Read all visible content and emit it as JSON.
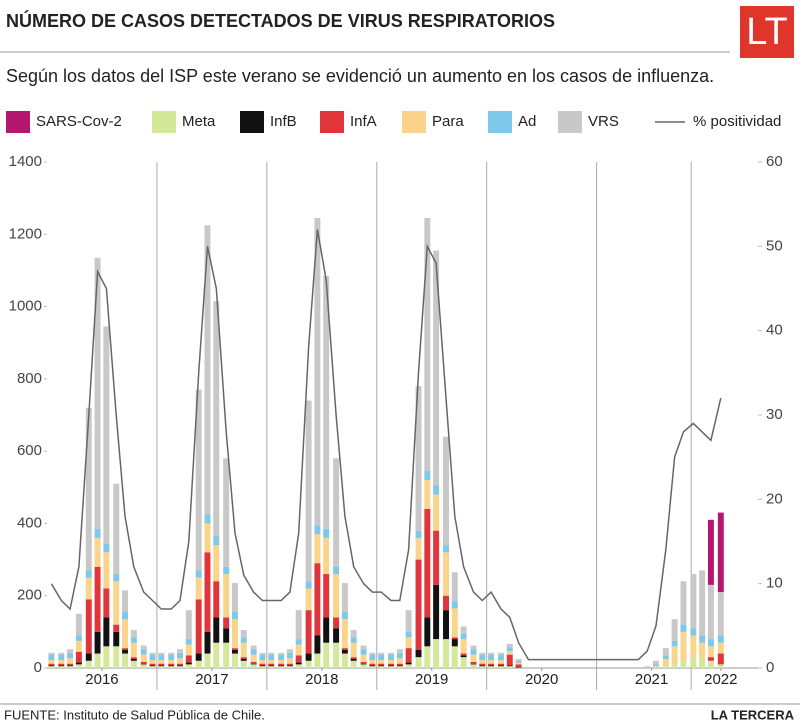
{
  "chart_data": {
    "type": "bar",
    "title": "NÚMERO DE CASOS DETECTADOS DE VIRUS RESPIRATORIOS",
    "subtitle": "Según los datos del ISP este verano se evidenció un aumento en los casos de influenza.",
    "logo": "LT",
    "source": "FUENTE: Instituto de Salud Pública de Chile.",
    "publisher": "LA TERCERA",
    "x": [
      2016.04,
      2016.13,
      2016.21,
      2016.29,
      2016.38,
      2016.46,
      2016.54,
      2016.63,
      2016.71,
      2016.79,
      2016.88,
      2016.96,
      2017.04,
      2017.13,
      2017.21,
      2017.29,
      2017.38,
      2017.46,
      2017.54,
      2017.63,
      2017.71,
      2017.79,
      2017.88,
      2017.96,
      2018.04,
      2018.13,
      2018.21,
      2018.29,
      2018.38,
      2018.46,
      2018.54,
      2018.63,
      2018.71,
      2018.79,
      2018.88,
      2018.96,
      2019.04,
      2019.13,
      2019.21,
      2019.29,
      2019.38,
      2019.46,
      2019.54,
      2019.63,
      2019.71,
      2019.79,
      2019.88,
      2019.96,
      2020.04,
      2020.13,
      2020.21,
      2020.29,
      2020.38,
      2020.46,
      2020.54,
      2020.63,
      2020.71,
      2020.79,
      2020.88,
      2020.96,
      2021.04,
      2021.13,
      2021.21,
      2021.29,
      2021.38,
      2021.46,
      2021.54,
      2021.63,
      2021.71,
      2021.79,
      2021.88,
      2021.96,
      2022.04,
      2022.13
    ],
    "xlim": [
      2016,
      2022.25
    ],
    "xticks": [
      {
        "value": 2016.5,
        "label": "2016"
      },
      {
        "value": 2017.5,
        "label": "2017"
      },
      {
        "value": 2018.5,
        "label": "2018"
      },
      {
        "value": 2019.5,
        "label": "2019"
      },
      {
        "value": 2020.5,
        "label": "2020"
      },
      {
        "value": 2021.5,
        "label": "2021"
      },
      {
        "value": 2022.13,
        "label": "2022"
      }
    ],
    "ylim": [
      0,
      1400
    ],
    "yticks": [
      0,
      200,
      400,
      600,
      800,
      1000,
      1200,
      1400
    ],
    "y2lim": [
      0,
      60
    ],
    "y2ticks": [
      0,
      10,
      20,
      30,
      40,
      50,
      60
    ],
    "series": [
      {
        "name": "SARS-Cov-2",
        "color": "#b5176f",
        "values": [
          0,
          0,
          0,
          0,
          0,
          0,
          0,
          0,
          0,
          0,
          0,
          0,
          0,
          0,
          0,
          0,
          0,
          0,
          0,
          0,
          0,
          0,
          0,
          0,
          0,
          0,
          0,
          0,
          0,
          0,
          0,
          0,
          0,
          0,
          0,
          0,
          0,
          0,
          0,
          0,
          0,
          0,
          0,
          0,
          0,
          0,
          0,
          0,
          0,
          0,
          0,
          0,
          0,
          0,
          0,
          0,
          0,
          0,
          0,
          0,
          0,
          0,
          0,
          0,
          0,
          0,
          0,
          0,
          0,
          0,
          0,
          0,
          180,
          220
        ]
      },
      {
        "name": "Meta",
        "color": "#d4e89a",
        "values": [
          5,
          5,
          5,
          10,
          20,
          40,
          60,
          60,
          40,
          20,
          10,
          5,
          5,
          5,
          5,
          10,
          20,
          40,
          70,
          70,
          40,
          20,
          10,
          5,
          5,
          5,
          5,
          10,
          20,
          40,
          70,
          70,
          40,
          20,
          10,
          5,
          5,
          5,
          5,
          10,
          30,
          60,
          80,
          80,
          60,
          30,
          10,
          5,
          5,
          5,
          5,
          0,
          0,
          0,
          0,
          0,
          0,
          0,
          0,
          0,
          0,
          0,
          0,
          0,
          0,
          0,
          0,
          5,
          10,
          20,
          30,
          30,
          20,
          10
        ]
      },
      {
        "name": "InfB",
        "color": "#111111",
        "values": [
          2,
          2,
          2,
          5,
          20,
          60,
          80,
          40,
          10,
          5,
          2,
          2,
          2,
          2,
          2,
          5,
          20,
          60,
          70,
          40,
          10,
          5,
          2,
          2,
          2,
          2,
          2,
          5,
          20,
          50,
          70,
          40,
          10,
          5,
          2,
          2,
          2,
          2,
          2,
          5,
          20,
          80,
          150,
          80,
          20,
          5,
          2,
          2,
          2,
          2,
          2,
          0,
          0,
          0,
          0,
          0,
          0,
          0,
          0,
          0,
          0,
          0,
          0,
          0,
          0,
          0,
          0,
          0,
          0,
          0,
          0,
          0,
          0,
          0
        ]
      },
      {
        "name": "InfA",
        "color": "#e0353b",
        "values": [
          5,
          5,
          5,
          30,
          150,
          180,
          80,
          20,
          5,
          5,
          5,
          5,
          5,
          5,
          5,
          20,
          150,
          220,
          100,
          30,
          5,
          5,
          5,
          5,
          5,
          5,
          5,
          20,
          120,
          200,
          120,
          30,
          5,
          5,
          5,
          5,
          5,
          5,
          5,
          40,
          250,
          300,
          150,
          40,
          5,
          5,
          5,
          5,
          5,
          5,
          30,
          10,
          0,
          0,
          0,
          0,
          0,
          0,
          0,
          0,
          0,
          0,
          0,
          0,
          0,
          0,
          0,
          0,
          0,
          0,
          0,
          0,
          10,
          30
        ]
      },
      {
        "name": "Para",
        "color": "#f9d48a",
        "values": [
          10,
          10,
          15,
          30,
          60,
          80,
          100,
          120,
          80,
          40,
          20,
          10,
          10,
          10,
          15,
          30,
          60,
          80,
          100,
          120,
          80,
          40,
          20,
          10,
          10,
          10,
          15,
          30,
          60,
          80,
          100,
          120,
          80,
          40,
          20,
          10,
          10,
          10,
          15,
          30,
          60,
          80,
          100,
          120,
          80,
          40,
          20,
          10,
          10,
          10,
          10,
          5,
          0,
          0,
          0,
          0,
          0,
          0,
          0,
          0,
          0,
          0,
          0,
          0,
          0,
          0,
          5,
          20,
          50,
          80,
          60,
          40,
          30,
          30
        ]
      },
      {
        "name": "Ad",
        "color": "#7ec8ea",
        "values": [
          15,
          15,
          15,
          15,
          20,
          25,
          25,
          20,
          20,
          15,
          15,
          15,
          15,
          15,
          15,
          15,
          20,
          25,
          25,
          20,
          20,
          15,
          15,
          15,
          15,
          15,
          15,
          15,
          20,
          25,
          25,
          20,
          20,
          15,
          15,
          15,
          15,
          15,
          15,
          15,
          20,
          25,
          25,
          20,
          20,
          15,
          15,
          15,
          15,
          15,
          10,
          5,
          0,
          0,
          0,
          0,
          0,
          0,
          0,
          0,
          0,
          0,
          0,
          0,
          0,
          0,
          5,
          10,
          15,
          20,
          20,
          20,
          20,
          20
        ]
      },
      {
        "name": "VRS",
        "color": "#c8c8c8",
        "values": [
          5,
          5,
          10,
          60,
          450,
          750,
          600,
          250,
          60,
          20,
          10,
          5,
          5,
          5,
          10,
          80,
          500,
          800,
          650,
          300,
          80,
          20,
          10,
          5,
          5,
          5,
          10,
          80,
          500,
          850,
          700,
          300,
          80,
          20,
          10,
          5,
          5,
          5,
          10,
          60,
          400,
          700,
          650,
          300,
          80,
          20,
          10,
          5,
          5,
          5,
          10,
          5,
          0,
          0,
          0,
          0,
          0,
          0,
          0,
          0,
          0,
          0,
          0,
          0,
          0,
          5,
          10,
          20,
          60,
          120,
          150,
          180,
          150,
          120
        ]
      },
      {
        "name": "% positividad",
        "color": "#666666",
        "type": "line",
        "axis": "y2",
        "values": [
          10,
          8,
          7,
          12,
          30,
          47,
          45,
          30,
          18,
          12,
          9,
          8,
          7,
          7,
          8,
          15,
          35,
          50,
          45,
          28,
          16,
          11,
          9,
          8,
          8,
          8,
          9,
          16,
          38,
          52,
          46,
          30,
          18,
          12,
          10,
          9,
          9,
          8,
          8,
          14,
          35,
          50,
          48,
          32,
          18,
          12,
          9,
          8,
          9,
          7,
          6,
          3,
          1,
          1,
          1,
          1,
          1,
          1,
          1,
          1,
          1,
          1,
          1,
          1,
          1,
          2,
          5,
          14,
          25,
          28,
          29,
          28,
          27,
          32
        ]
      }
    ]
  }
}
